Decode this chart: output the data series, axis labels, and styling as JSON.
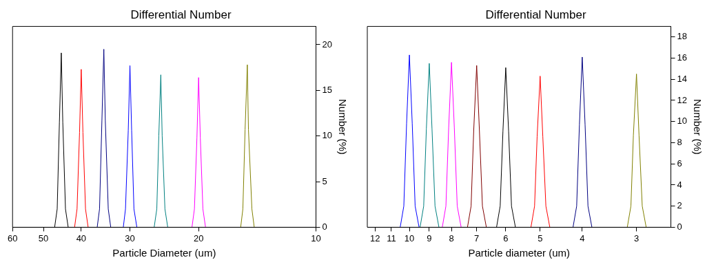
{
  "chart_data": [
    {
      "type": "line",
      "title": "Differential Number",
      "xlabel": "Particle Diameter (um)",
      "ylabel": "Number (%)",
      "log": "x",
      "xlim": [
        60,
        10
      ],
      "xticks": [
        60,
        50,
        40,
        30,
        20,
        10
      ],
      "ylim": [
        0,
        22
      ],
      "yticks": [
        0,
        5,
        10,
        15,
        20
      ],
      "grid": false,
      "legend": false,
      "marker": "none",
      "line_style": "solid",
      "series": [
        {
          "color": "#000000",
          "x": [
            43.2,
            43.9,
            44.6,
            45,
            45.5,
            46.1,
            46.8
          ],
          "values": [
            0,
            2,
            11.5,
            19.1,
            11.5,
            2,
            0
          ]
        },
        {
          "color": "#ff0000",
          "x": [
            38.4,
            39,
            39.6,
            40,
            40.4,
            41,
            41.6
          ],
          "values": [
            0,
            2,
            10.4,
            17.3,
            10.4,
            2,
            0
          ]
        },
        {
          "color": "#000080",
          "x": [
            33.6,
            34.1,
            34.7,
            35,
            35.4,
            35.9,
            36.4
          ],
          "values": [
            0,
            2,
            11.7,
            19.5,
            11.7,
            2,
            0
          ]
        },
        {
          "color": "#0000ff",
          "x": [
            28.8,
            29.3,
            29.7,
            30,
            30.3,
            30.8,
            31.2
          ],
          "values": [
            0,
            2,
            10.6,
            17.7,
            10.6,
            2,
            0
          ]
        },
        {
          "color": "#008080",
          "x": [
            24,
            24.4,
            24.8,
            25,
            25.3,
            25.6,
            26
          ],
          "values": [
            0,
            2,
            10,
            16.7,
            10,
            2,
            0
          ]
        },
        {
          "color": "#ff00ff",
          "x": [
            19.2,
            19.5,
            19.8,
            20,
            20.2,
            20.5,
            20.8
          ],
          "values": [
            0,
            2,
            9.8,
            16.4,
            9.8,
            2,
            0
          ]
        },
        {
          "color": "#808000",
          "x": [
            14.4,
            14.6,
            14.9,
            15,
            15.2,
            15.4,
            15.6
          ],
          "values": [
            0,
            2,
            10.7,
            17.8,
            10.7,
            2,
            0
          ]
        }
      ]
    },
    {
      "type": "line",
      "title": "Differential Number",
      "xlabel": "Particle diameter (um)",
      "ylabel": "Number (%)",
      "log": "x",
      "xlim": [
        12.5,
        2.5
      ],
      "xticks": [
        12,
        11,
        10,
        9,
        8,
        7,
        6,
        5,
        4,
        3
      ],
      "ylim": [
        0,
        19
      ],
      "yticks": [
        0,
        2,
        4,
        6,
        8,
        10,
        12,
        14,
        16,
        18
      ],
      "grid": false,
      "legend": false,
      "marker": "none",
      "line_style": "solid",
      "series": [
        {
          "color": "#0000ff",
          "x": [
            9.5,
            9.7,
            9.85,
            10,
            10.15,
            10.3,
            10.5
          ],
          "values": [
            0,
            2,
            9.8,
            16.3,
            9.8,
            2,
            0
          ]
        },
        {
          "color": "#008080",
          "x": [
            8.55,
            8.73,
            8.87,
            9,
            9.14,
            9.27,
            9.45
          ],
          "values": [
            0,
            2,
            9.3,
            15.5,
            9.3,
            2,
            0
          ]
        },
        {
          "color": "#ff00ff",
          "x": [
            7.6,
            7.76,
            7.88,
            8,
            8.12,
            8.24,
            8.4
          ],
          "values": [
            0,
            2,
            9.4,
            15.6,
            9.4,
            2,
            0
          ]
        },
        {
          "color": "#800000",
          "x": [
            6.65,
            6.79,
            6.9,
            7,
            7.11,
            7.21,
            7.35
          ],
          "values": [
            0,
            2,
            9.2,
            15.3,
            9.2,
            2,
            0
          ]
        },
        {
          "color": "#000000",
          "x": [
            5.7,
            5.82,
            5.91,
            6,
            6.09,
            6.18,
            6.3
          ],
          "values": [
            0,
            2,
            9.1,
            15.1,
            9.1,
            2,
            0
          ]
        },
        {
          "color": "#ff0000",
          "x": [
            4.75,
            4.85,
            4.93,
            5,
            5.08,
            5.15,
            5.25
          ],
          "values": [
            0,
            2,
            8.6,
            14.3,
            8.6,
            2,
            0
          ]
        },
        {
          "color": "#000080",
          "x": [
            3.8,
            3.88,
            3.94,
            4,
            4.06,
            4.12,
            4.2
          ],
          "values": [
            0,
            2,
            9.7,
            16.1,
            9.7,
            2,
            0
          ]
        },
        {
          "color": "#808000",
          "x": [
            2.85,
            2.91,
            2.96,
            3,
            3.05,
            3.09,
            3.15
          ],
          "values": [
            0,
            2,
            8.7,
            14.5,
            8.7,
            2,
            0
          ]
        }
      ]
    }
  ]
}
